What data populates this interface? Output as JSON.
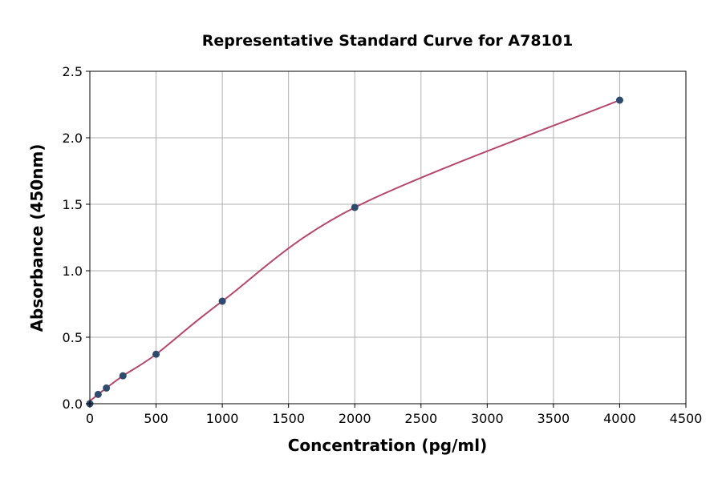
{
  "chart_data": {
    "type": "scatter",
    "title": "Representative Standard Curve for A78101",
    "xlabel": "Concentration (pg/ml)",
    "ylabel": "Absorbance (450nm)",
    "xlim": [
      0,
      4500
    ],
    "ylim": [
      0,
      2.5
    ],
    "xticks": [
      0,
      500,
      1000,
      1500,
      2000,
      2500,
      3000,
      3500,
      4000,
      4500
    ],
    "yticks": [
      "0.0",
      "0.5",
      "1.0",
      "1.5",
      "2.0",
      "2.5"
    ],
    "grid": true,
    "points": [
      {
        "x": 0,
        "y": 0.0
      },
      {
        "x": 62.5,
        "y": 0.07
      },
      {
        "x": 125,
        "y": 0.118
      },
      {
        "x": 250,
        "y": 0.21
      },
      {
        "x": 500,
        "y": 0.372
      },
      {
        "x": 1000,
        "y": 0.771
      },
      {
        "x": 2000,
        "y": 1.476
      },
      {
        "x": 4000,
        "y": 2.283
      }
    ],
    "fit_curve": {
      "x_start": 0,
      "y_start": 0.02
    },
    "colors": {
      "points": "#2e4a6e",
      "curve": "#b5476b",
      "grid": "#b0b0b0"
    }
  }
}
